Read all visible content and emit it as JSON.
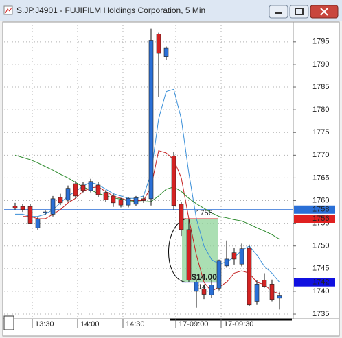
{
  "chart_data": {
    "type": "candlestick",
    "title": "S.JP.J4901 - FUJIFILM Holdings Corporation, 5 Min",
    "categories": [
      null,
      null,
      "13:30",
      null,
      null,
      null,
      null,
      null,
      "14:00",
      null,
      null,
      null,
      null,
      null,
      "14:30",
      null,
      null,
      null,
      null,
      null,
      null,
      "17-09:00",
      null,
      null,
      null,
      null,
      null,
      "17-09:30",
      null,
      null,
      null,
      null,
      null,
      null,
      null,
      null
    ],
    "open": [
      1758.8,
      1758.7,
      1758.7,
      1754,
      1757.3,
      1757,
      1760.7,
      1760.1,
      1763.7,
      1763.4,
      1762.2,
      1763.4,
      1761.8,
      1761,
      1760.2,
      1759,
      1759.2,
      1760.4,
      1760.4,
      1796.7,
      1791.7,
      1769.8,
      1759.2,
      1753.6,
      1740,
      1740.5,
      1739.2,
      1740.7,
      1745.6,
      1748.5,
      1746,
      1749.5,
      1737.8,
      1742.5,
      1741.6,
      1738.5
    ],
    "high": [
      1759.5,
      1759.2,
      1759.3,
      1756.5,
      1757.8,
      1761,
      1761.5,
      1763.3,
      1764.3,
      1764,
      1764.8,
      1764,
      1762.3,
      1761.5,
      1760.6,
      1760.8,
      1761,
      1761,
      1797.9,
      1797,
      1794,
      1770.7,
      1759.7,
      1755.9,
      1742.5,
      1741.5,
      1742.5,
      1747,
      1751.2,
      1749.5,
      1750.5,
      1750.3,
      1742.5,
      1744,
      1742.6,
      1739.8
    ],
    "low": [
      1758,
      1757.5,
      1754.8,
      1753.6,
      1756.8,
      1756.5,
      1759,
      1759.8,
      1760.5,
      1761.8,
      1761.8,
      1760.8,
      1759.7,
      1758.6,
      1758.5,
      1758.5,
      1758.8,
      1759.5,
      1758.9,
      1782.8,
      1791,
      1758,
      1752.2,
      1742,
      1736.4,
      1738.3,
      1738.5,
      1740.2,
      1745.2,
      1745.9,
      1745.5,
      1736.8,
      1737,
      1740.8,
      1737.8,
      1736
    ],
    "close": [
      1758.3,
      1758,
      1755,
      1755.9,
      1757.5,
      1760.4,
      1759.5,
      1762.7,
      1761,
      1762.2,
      1764.2,
      1761.3,
      1760.2,
      1759.5,
      1759,
      1760.5,
      1760.6,
      1760,
      1795.2,
      1792.4,
      1793.6,
      1758.9,
      1753.6,
      1742.5,
      1742,
      1739.3,
      1741.4,
      1746.8,
      1747.1,
      1747.1,
      1749.4,
      1737,
      1741.6,
      1741.1,
      1738.2,
      1739
    ],
    "up_color": "#2a6fd6",
    "down_color": "#d42222",
    "series": [
      {
        "color": "#3a8fd8",
        "values": [
          1757,
          1757,
          1756.5,
          1756.5,
          1757,
          1758,
          1759.5,
          1761,
          1762,
          1763.2,
          1764,
          1763.5,
          1762.5,
          1761.5,
          1761,
          1760.5,
          1760.5,
          1761,
          1766,
          1778,
          1784,
          1784.5,
          1778,
          1766,
          1756,
          1750,
          1747,
          1746,
          1746.5,
          1747.5,
          1749,
          1750,
          1748,
          1745.5,
          1744,
          1742
        ]
      },
      {
        "color": "#c42020",
        "values": [
          null,
          1756.5,
          1756.5,
          1756,
          1756,
          1757,
          1758,
          1759.5,
          1760.5,
          1762,
          1762.8,
          1763,
          1762,
          1761,
          1760.5,
          1760,
          1760,
          1760,
          1763,
          1771,
          1770.5,
          1769,
          1765,
          1756,
          1748,
          1742,
          1740,
          1741,
          1742,
          1744,
          1744.5,
          1744,
          1742,
          1741.5,
          1740,
          1739.5
        ]
      },
      {
        "color": "#2e8b2e",
        "values": [
          1770,
          1769.5,
          1769,
          1768.3,
          1767.5,
          1766.7,
          1765.8,
          1765,
          1764,
          1763,
          1762.3,
          1761.6,
          1761,
          1760.6,
          1760.3,
          1760,
          1759.8,
          1759.7,
          1759.8,
          1761,
          1762.5,
          1763,
          1762,
          1760.5,
          1759.3,
          1758.3,
          1757.3,
          1756.5,
          1756.2,
          1755.8,
          1755.5,
          1754.8,
          1754,
          1753.3,
          1752.5,
          1751.5
        ]
      }
    ],
    "ylim": [
      1734.4,
      1798.9
    ],
    "yticks": [
      1735,
      1740,
      1745,
      1750,
      1755,
      1760,
      1765,
      1770,
      1775,
      1780,
      1785,
      1790,
      1795
    ],
    "grid": true,
    "price_line": {
      "value": 1758,
      "color": "#2a6fd6"
    },
    "price_tags": [
      {
        "value": 1758,
        "color": "#2a6fd6"
      },
      {
        "value": 1756,
        "color": "#e02020"
      },
      {
        "value": 1742,
        "color": "#1010e0"
      }
    ],
    "measure": {
      "from": 1756,
      "to": 1742,
      "label": "$14.00",
      "change": -14,
      "color": "#8fd49a"
    }
  }
}
